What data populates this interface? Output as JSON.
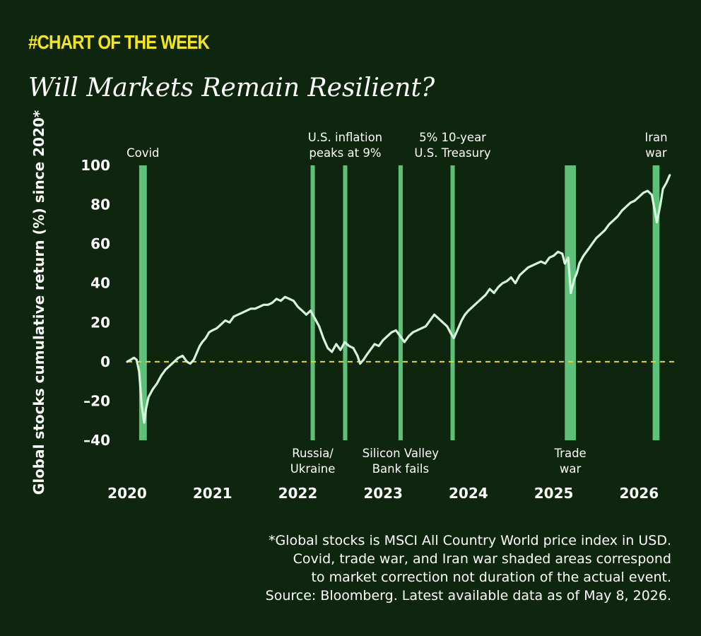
{
  "header": {
    "kicker": "#CHART OF THE WEEK",
    "title": "Will Markets Remain Resilient?"
  },
  "colors": {
    "background": "#0f260e",
    "kicker": "#f5e51c",
    "line": "#d4f5dc",
    "shade": "#5ec17a",
    "zero_line": "#e6d820"
  },
  "chart_data": {
    "type": "line",
    "title": "Will Markets Remain Resilient?",
    "ylabel": "Global stocks cumulative return (%) since 2020*",
    "xlabel": "",
    "xlim": [
      2020.0,
      2026.42
    ],
    "ylim": [
      -40,
      100
    ],
    "yticks": [
      100,
      80,
      60,
      40,
      20,
      0,
      -20,
      -40
    ],
    "ytick_labels": [
      "100",
      "80",
      "60",
      "40",
      "20",
      "0",
      "–20",
      "–40"
    ],
    "xticks": [
      2020,
      2021,
      2022,
      2023,
      2024,
      2025,
      2026
    ],
    "xtick_labels": [
      "2020",
      "2021",
      "2022",
      "2023",
      "2024",
      "2025",
      "2026"
    ],
    "grid": false,
    "reference_line": {
      "y": 0,
      "style": "dashed"
    },
    "shaded_events": [
      {
        "start": 2020.14,
        "end": 2020.23,
        "label_lines": [
          "Covid"
        ],
        "label_position": "top"
      },
      {
        "start": 2022.15,
        "end": 2022.2,
        "label_lines": [
          "Russia/",
          "Ukraine"
        ],
        "label_position": "bottom"
      },
      {
        "start": 2022.53,
        "end": 2022.58,
        "label_lines": [
          "U.S. inflation",
          "peaks at 9%"
        ],
        "label_position": "top"
      },
      {
        "start": 2023.18,
        "end": 2023.23,
        "label_lines": [
          "Silicon Valley",
          "Bank fails"
        ],
        "label_position": "bottom"
      },
      {
        "start": 2023.79,
        "end": 2023.84,
        "label_lines": [
          "5% 10-year",
          "U.S. Treasury"
        ],
        "label_position": "top"
      },
      {
        "start": 2025.13,
        "end": 2025.26,
        "label_lines": [
          "Trade",
          "war"
        ],
        "label_position": "bottom"
      },
      {
        "start": 2026.16,
        "end": 2026.24,
        "label_lines": [
          "Iran",
          "war"
        ],
        "label_position": "top"
      }
    ],
    "series": [
      {
        "x": [
          2020.0,
          2020.04,
          2020.08,
          2020.11,
          2020.14,
          2020.17,
          2020.2,
          2020.22,
          2020.25,
          2020.3,
          2020.35,
          2020.4,
          2020.45,
          2020.5,
          2020.55,
          2020.6,
          2020.65,
          2020.7,
          2020.74,
          2020.78,
          2020.82,
          2020.85,
          2020.88,
          2020.92,
          2020.96,
          2021.0,
          2021.05,
          2021.1,
          2021.15,
          2021.2,
          2021.25,
          2021.3,
          2021.35,
          2021.4,
          2021.45,
          2021.5,
          2021.55,
          2021.6,
          2021.65,
          2021.7,
          2021.75,
          2021.8,
          2021.85,
          2021.9,
          2021.95,
          2022.0,
          2022.05,
          2022.1,
          2022.15,
          2022.2,
          2022.25,
          2022.3,
          2022.35,
          2022.4,
          2022.45,
          2022.5,
          2022.55,
          2022.6,
          2022.65,
          2022.7,
          2022.73,
          2022.77,
          2022.8,
          2022.85,
          2022.9,
          2022.95,
          2023.0,
          2023.05,
          2023.1,
          2023.15,
          2023.2,
          2023.25,
          2023.3,
          2023.35,
          2023.4,
          2023.45,
          2023.5,
          2023.55,
          2023.6,
          2023.65,
          2023.7,
          2023.75,
          2023.8,
          2023.83,
          2023.88,
          2023.92,
          2023.96,
          2024.0,
          2024.05,
          2024.1,
          2024.15,
          2024.2,
          2024.25,
          2024.3,
          2024.35,
          2024.4,
          2024.45,
          2024.5,
          2024.55,
          2024.6,
          2024.65,
          2024.7,
          2024.75,
          2024.8,
          2024.85,
          2024.9,
          2024.95,
          2025.0,
          2025.05,
          2025.1,
          2025.13,
          2025.17,
          2025.2,
          2025.24,
          2025.27,
          2025.3,
          2025.35,
          2025.4,
          2025.45,
          2025.5,
          2025.55,
          2025.6,
          2025.65,
          2025.7,
          2025.75,
          2025.8,
          2025.85,
          2025.9,
          2025.95,
          2026.0,
          2026.05,
          2026.1,
          2026.15,
          2026.18,
          2026.21,
          2026.25,
          2026.28,
          2026.32,
          2026.36
        ],
        "values": [
          0,
          1,
          2,
          1,
          -5,
          -22,
          -31,
          -24,
          -18,
          -14,
          -11,
          -7,
          -4,
          -2,
          0,
          2,
          3,
          0,
          -1,
          1,
          5,
          8,
          10,
          12,
          15,
          16,
          17,
          19,
          21,
          20,
          23,
          24,
          25,
          26,
          27,
          27,
          28,
          29,
          29,
          30,
          32,
          31,
          33,
          32,
          31,
          28,
          26,
          24,
          26,
          22,
          18,
          12,
          7,
          5,
          9,
          6,
          10,
          8,
          7,
          3,
          -1,
          1,
          3,
          6,
          9,
          8,
          11,
          13,
          15,
          16,
          13,
          10,
          13,
          15,
          16,
          17,
          18,
          21,
          24,
          22,
          20,
          18,
          14,
          12,
          17,
          21,
          24,
          26,
          28,
          30,
          32,
          34,
          37,
          35,
          38,
          40,
          41,
          43,
          40,
          44,
          46,
          48,
          49,
          50,
          51,
          50,
          53,
          54,
          56,
          55,
          50,
          53,
          35,
          42,
          45,
          50,
          54,
          57,
          60,
          63,
          65,
          67,
          70,
          72,
          74,
          77,
          79,
          81,
          82,
          84,
          86,
          87,
          85,
          78,
          71,
          80,
          88,
          91,
          95
        ]
      }
    ]
  },
  "footnote": {
    "lines": [
      "*Global stocks is MSCI All Country World price index in USD.",
      "Covid, trade war, and Iran war shaded areas correspond",
      "to market correction not duration of the actual event.",
      "Source: Bloomberg. Latest available data as of May 8, 2026."
    ]
  }
}
